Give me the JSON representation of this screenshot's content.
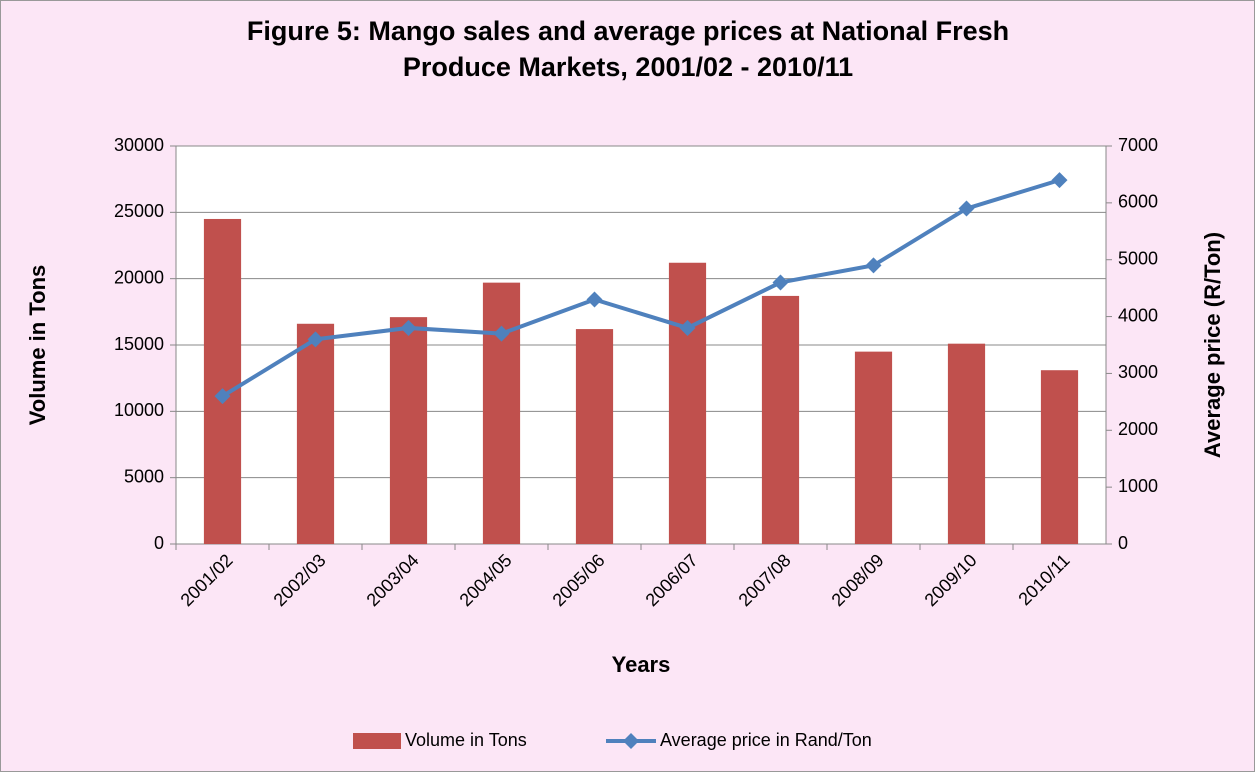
{
  "chart_data": {
    "type": "bar_line",
    "title": "Figure 5: Mango sales and average prices at National Fresh Produce Markets, 2001/02 - 2010/11",
    "x_label": "Years",
    "y_label": "Volume in Tons",
    "y2_label": "Average price (R/Ton)",
    "categories": [
      "2001/02",
      "2002/03",
      "2003/04",
      "2004/05",
      "2005/06",
      "2006/07",
      "2007/08",
      "2008/09",
      "2009/10",
      "2010/11"
    ],
    "series": [
      {
        "name": "Volume in Tons",
        "type": "bar",
        "color": "#c0504d",
        "values": [
          24500,
          16600,
          17100,
          19700,
          16200,
          21200,
          18700,
          14500,
          15100,
          13100
        ]
      },
      {
        "name": "Average price in Rand/Ton",
        "type": "line",
        "axis": "y2",
        "color": "#4f81bd",
        "values": [
          2600,
          3600,
          3800,
          3700,
          4300,
          3800,
          4600,
          4900,
          5900,
          6400
        ]
      }
    ],
    "ylim": [
      0,
      30000
    ],
    "yticks": [
      0,
      5000,
      10000,
      15000,
      20000,
      25000,
      30000
    ],
    "y2lim": [
      0,
      7000
    ],
    "y2ticks": [
      0,
      1000,
      2000,
      3000,
      4000,
      5000,
      6000,
      7000
    ],
    "grid": true,
    "legend": "bottom"
  }
}
